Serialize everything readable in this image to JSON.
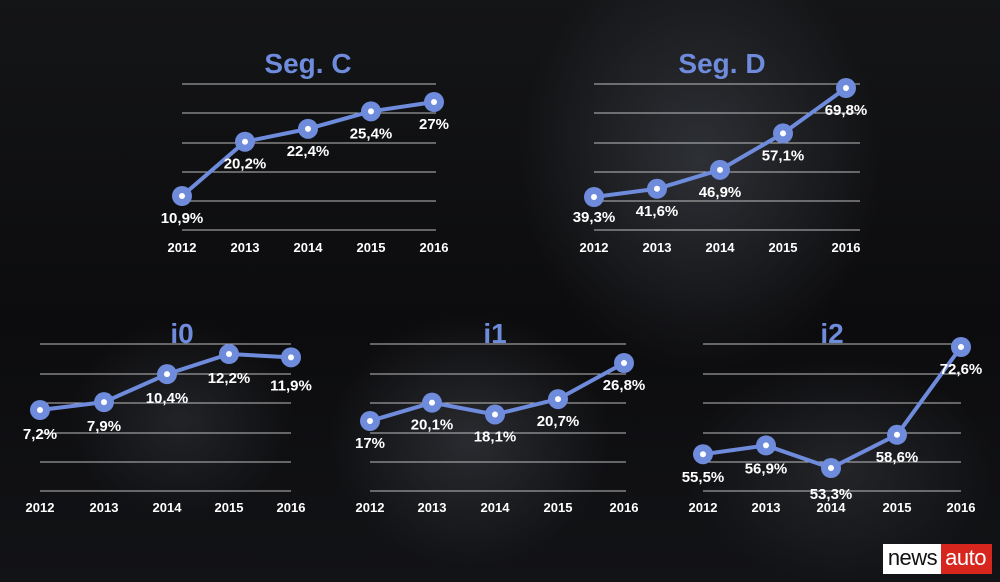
{
  "colors": {
    "line": "#6f8bdc",
    "title": "#6f8bdc",
    "gridline": "#d9d9d9",
    "text": "#ffffff",
    "marker_center": "#ffffff"
  },
  "logo": {
    "part1": "news",
    "part2": "auto"
  },
  "chart_data": [
    {
      "type": "line",
      "title": "Seg. C",
      "categories": [
        "2012",
        "2013",
        "2014",
        "2015",
        "2016"
      ],
      "values": [
        10.9,
        20.2,
        22.4,
        25.4,
        27
      ],
      "labels": [
        "10,9%",
        "20,2%",
        "22,4%",
        "25,4%",
        "27%"
      ],
      "grid": true
    },
    {
      "type": "line",
      "title": "Seg. D",
      "categories": [
        "2012",
        "2013",
        "2014",
        "2015",
        "2016"
      ],
      "values": [
        39.3,
        41.6,
        46.9,
        57.1,
        69.8
      ],
      "labels": [
        "39,3%",
        "41,6%",
        "46,9%",
        "57,1%",
        "69,8%"
      ],
      "grid": true
    },
    {
      "type": "line",
      "title": "i0",
      "categories": [
        "2012",
        "2013",
        "2014",
        "2015",
        "2016"
      ],
      "values": [
        7.2,
        7.9,
        10.4,
        12.2,
        11.9
      ],
      "labels": [
        "7,2%",
        "7,9%",
        "10,4%",
        "12,2%",
        "11,9%"
      ],
      "grid": true
    },
    {
      "type": "line",
      "title": "i1",
      "categories": [
        "2012",
        "2013",
        "2014",
        "2015",
        "2016"
      ],
      "values": [
        17,
        20.1,
        18.1,
        20.7,
        26.8
      ],
      "labels": [
        "17%",
        "20,1%",
        "18,1%",
        "20,7%",
        "26,8%"
      ],
      "grid": true
    },
    {
      "type": "line",
      "title": "i2",
      "categories": [
        "2012",
        "2013",
        "2014",
        "2015",
        "2016"
      ],
      "values": [
        55.5,
        56.9,
        53.3,
        58.6,
        72.6
      ],
      "labels": [
        "55,5%",
        "56,9%",
        "53,3%",
        "58,6%",
        "72,6%"
      ],
      "grid": true
    }
  ]
}
